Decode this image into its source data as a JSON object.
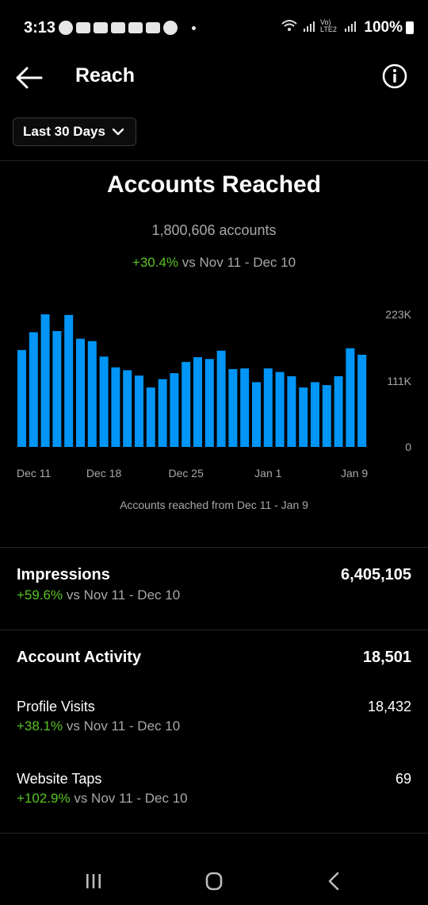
{
  "status_bar": {
    "time": "3:13",
    "battery": "100%",
    "icons_left": [
      "whatsapp-icon",
      "message-icon",
      "youtube-icon",
      "youtube-icon",
      "youtube-icon",
      "youtube-icon",
      "google-icon"
    ],
    "network_label": "Vo) LTE2"
  },
  "header": {
    "title": "Reach"
  },
  "period": {
    "label": "Last 30 Days"
  },
  "reach": {
    "title": "Accounts Reached",
    "count": "1,800,606 accounts",
    "change": "+30.4%",
    "compare_text": " vs Nov 11 - Dec 10",
    "caption": "Accounts reached from Dec 11 - Jan 9"
  },
  "chart_data": {
    "type": "bar",
    "ylim": [
      0,
      223000
    ],
    "y_ticks": [
      "223K",
      "111K",
      "0"
    ],
    "y_tick_values": [
      223000,
      111000,
      0
    ],
    "x_tick_labels": [
      "Dec 11",
      "Dec 18",
      "Dec 25",
      "Jan 1",
      "Jan 9"
    ],
    "x_tick_indices": [
      0,
      7,
      14,
      21,
      29
    ],
    "bar_color": "#0095f6",
    "values": [
      163000,
      193000,
      223000,
      195000,
      222000,
      182000,
      178000,
      152000,
      134000,
      129000,
      120000,
      100000,
      114000,
      124000,
      143000,
      151000,
      148000,
      162000,
      131000,
      132000,
      109000,
      132000,
      126000,
      119000,
      100000,
      109000,
      104000,
      119000,
      166000,
      155000
    ]
  },
  "impressions": {
    "title": "Impressions",
    "value": "6,405,105",
    "change": "+59.6%",
    "compare_text": " vs Nov 11 - Dec 10"
  },
  "account_activity": {
    "title": "Account Activity",
    "value": "18,501",
    "items": [
      {
        "label": "Profile Visits",
        "value": "18,432",
        "change": "+38.1%",
        "compare_text": " vs Nov 11 - Dec 10"
      },
      {
        "label": "Website Taps",
        "value": "69",
        "change": "+102.9%",
        "compare_text": " vs Nov 11 - Dec 10"
      }
    ]
  },
  "colors": {
    "background": "#000000",
    "accent_positive": "#58c322",
    "secondary_text": "#a8a8a8",
    "bar": "#0095f6"
  }
}
